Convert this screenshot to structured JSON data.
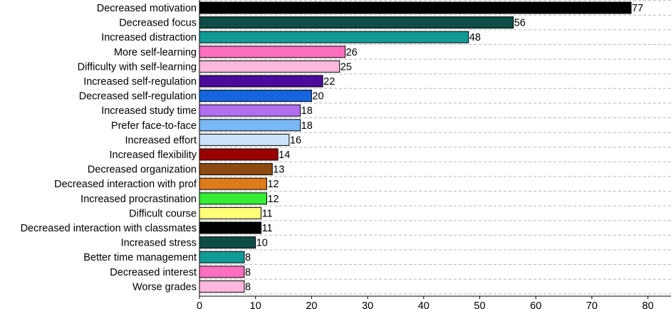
{
  "chart_data": {
    "type": "bar",
    "orientation": "horizontal",
    "title": "",
    "xlabel": "",
    "ylabel": "",
    "xlim": [
      0,
      80
    ],
    "xticks": [
      0,
      10,
      20,
      30,
      40,
      50,
      60,
      70,
      80
    ],
    "grid": "horizontal dashed",
    "legend": "none",
    "categories": [
      "Decreased motivation",
      "Decreased focus",
      "Increased distraction",
      "More self-learning",
      "Difficulty with self-learning",
      "Increased self-regulation",
      "Decreased self-regulation",
      "Increased study time",
      "Prefer face-to-face",
      "Increased effort",
      "Increased flexibility",
      "Decreased organization",
      "Decreased interaction with prof",
      "Increased procrastination",
      "Difficult course",
      "Decreased interaction with classmates",
      "Increased stress",
      "Better time management",
      "Decreased interest",
      "Worse grades"
    ],
    "values": [
      77,
      56,
      48,
      26,
      25,
      22,
      20,
      18,
      18,
      16,
      14,
      13,
      12,
      12,
      11,
      11,
      10,
      8,
      8,
      8
    ],
    "colors": [
      "#000000",
      "#0d4d45",
      "#119a96",
      "#ff6fbf",
      "#ffb8dd",
      "#4b0a99",
      "#1565e0",
      "#b26ef0",
      "#7ab8f5",
      "#c9e3fb",
      "#990000",
      "#8c4a10",
      "#dd7a1a",
      "#33ee33",
      "#ffff77",
      "#000000",
      "#0d4d45",
      "#119a96",
      "#ff6fbf",
      "#ffb8dd"
    ]
  }
}
